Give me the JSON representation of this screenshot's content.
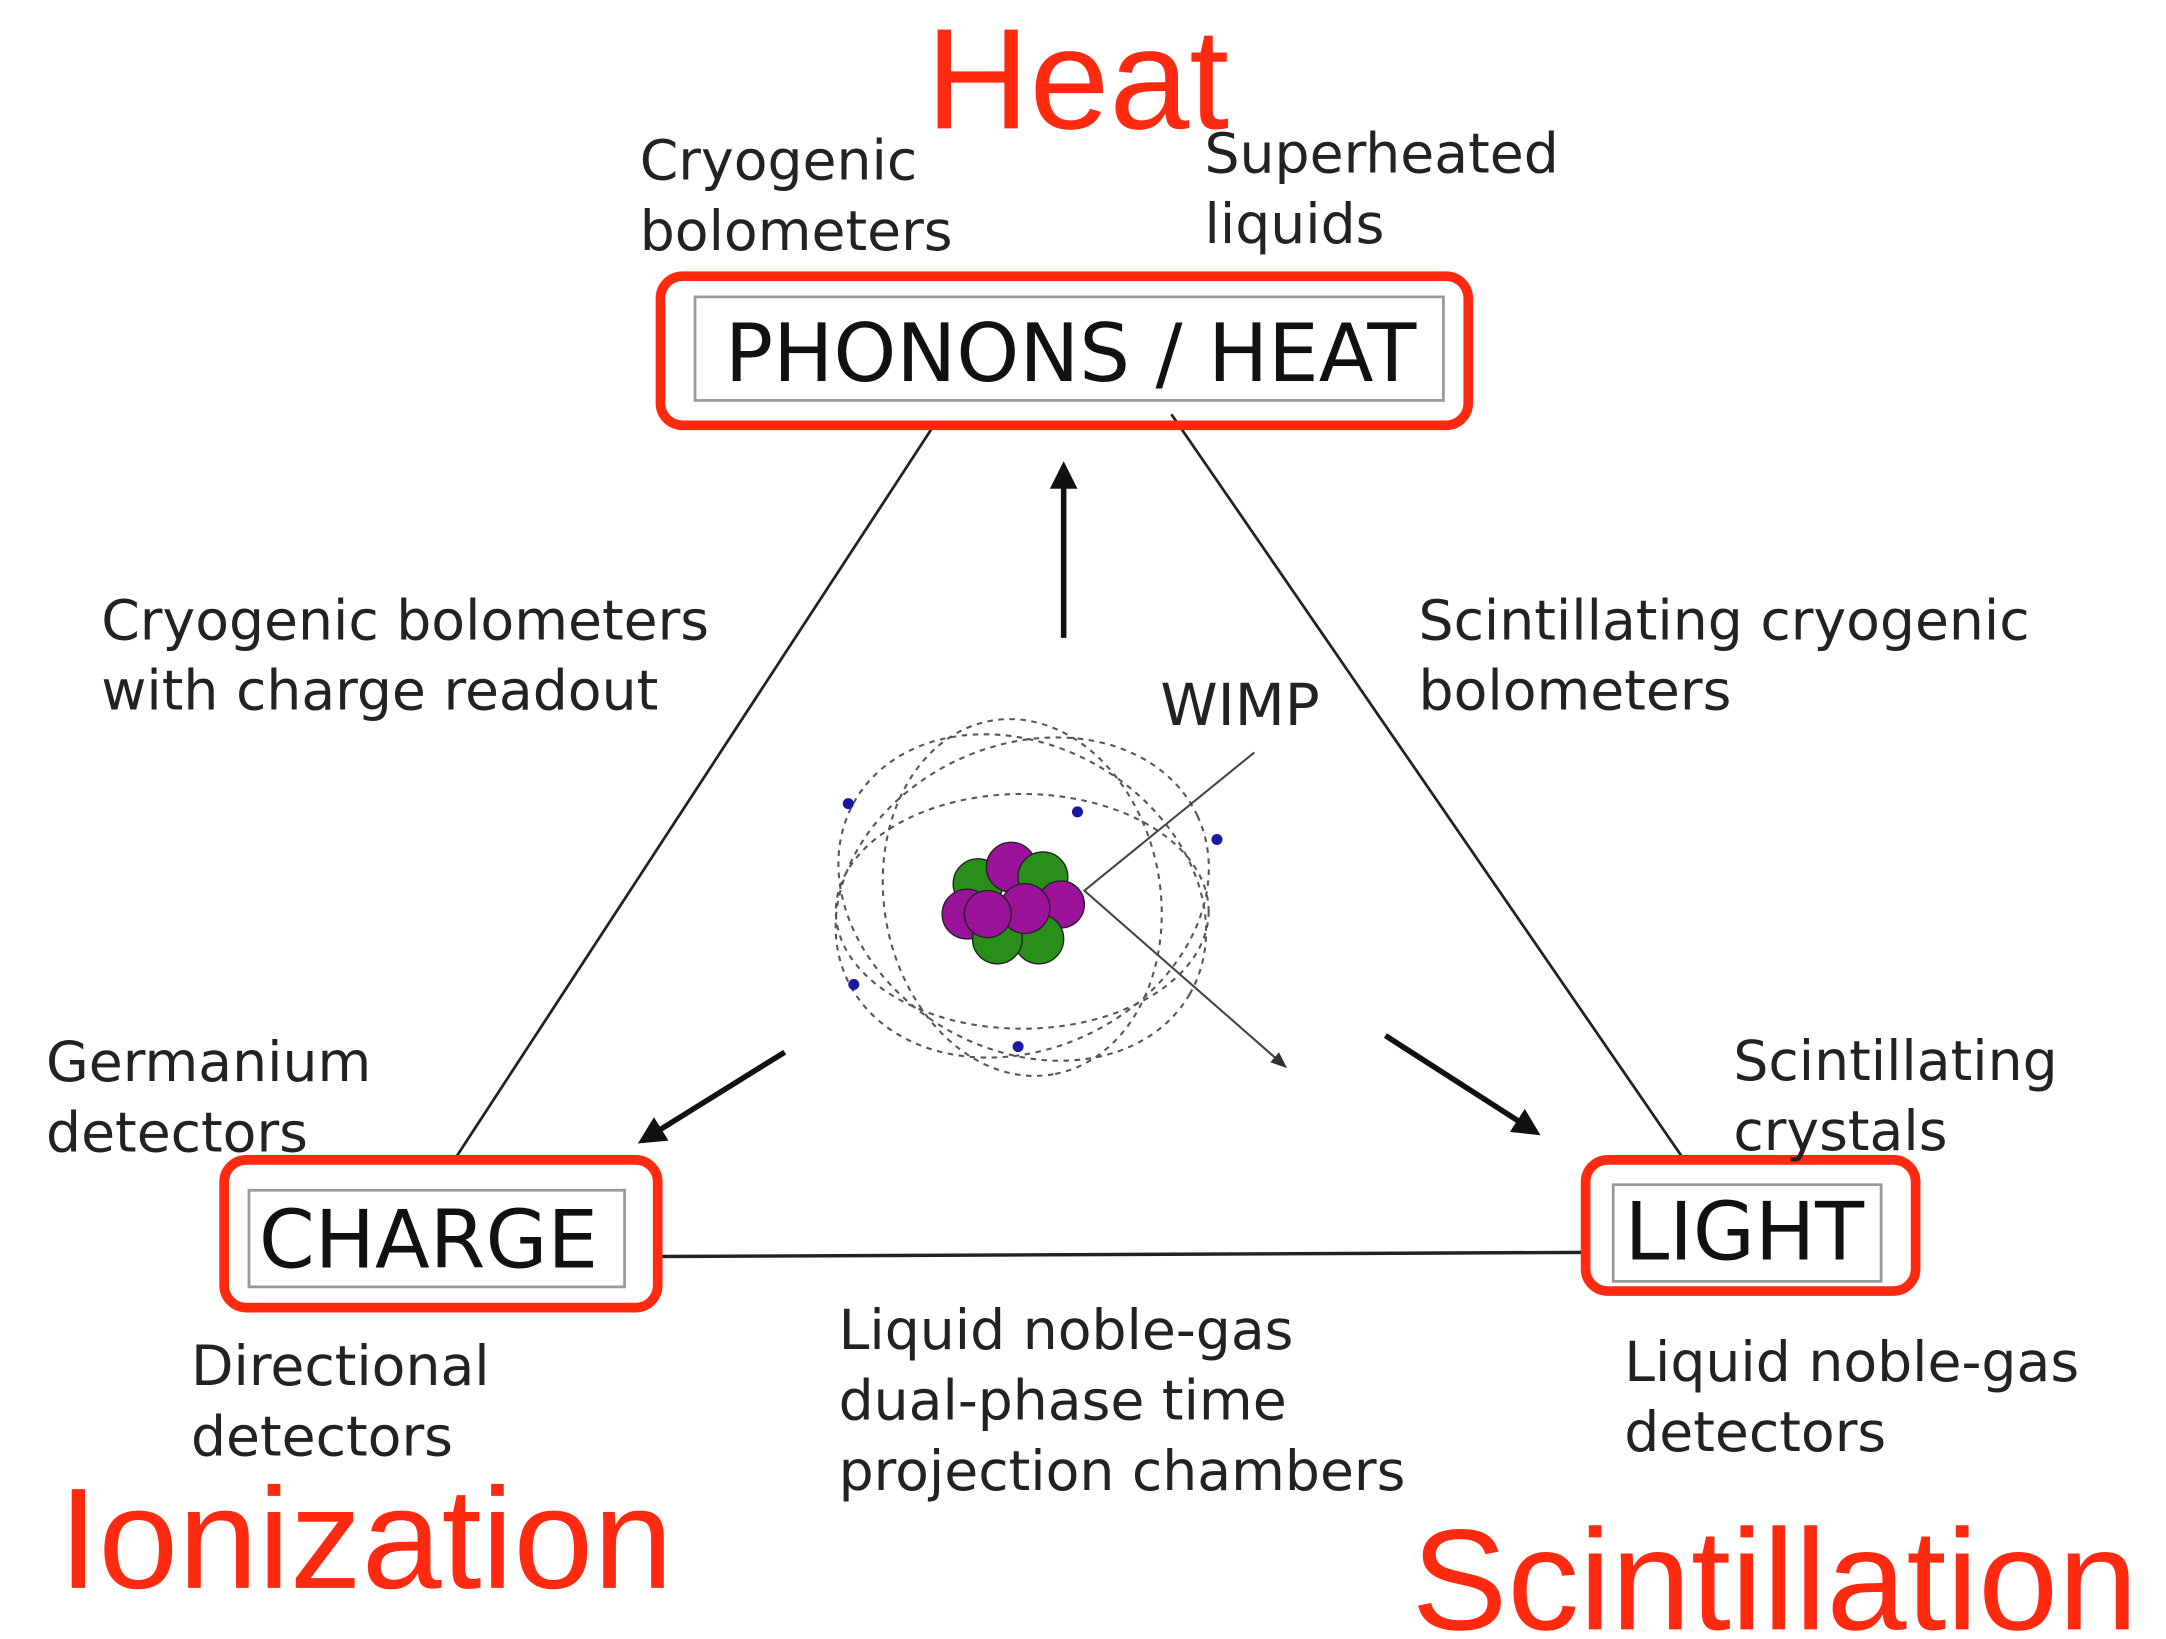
{
  "corners": {
    "top": {
      "box": "PHONONS / HEAT",
      "name": "Heat"
    },
    "left": {
      "box": "CHARGE",
      "name": "Ionization"
    },
    "right": {
      "box": "LIGHT",
      "name": "Scintillation"
    }
  },
  "labels": {
    "top_left": [
      "Cryogenic",
      "bolometers"
    ],
    "top_right": [
      "Superheated",
      "liquids"
    ],
    "left_edge": [
      "Cryogenic bolometers",
      "with charge readout"
    ],
    "right_edge": [
      "Scintillating cryogenic",
      "bolometers"
    ],
    "left_corner": [
      "Germanium",
      "detectors"
    ],
    "left_bottom": [
      "Directional",
      "detectors"
    ],
    "bottom_edge": [
      "Liquid noble-gas",
      "dual-phase time",
      "projection chambers"
    ],
    "right_corner": [
      "Scintillating",
      "crystals"
    ],
    "right_bottom": [
      "Liquid noble-gas",
      "detectors"
    ]
  },
  "wimp": "WIMP"
}
